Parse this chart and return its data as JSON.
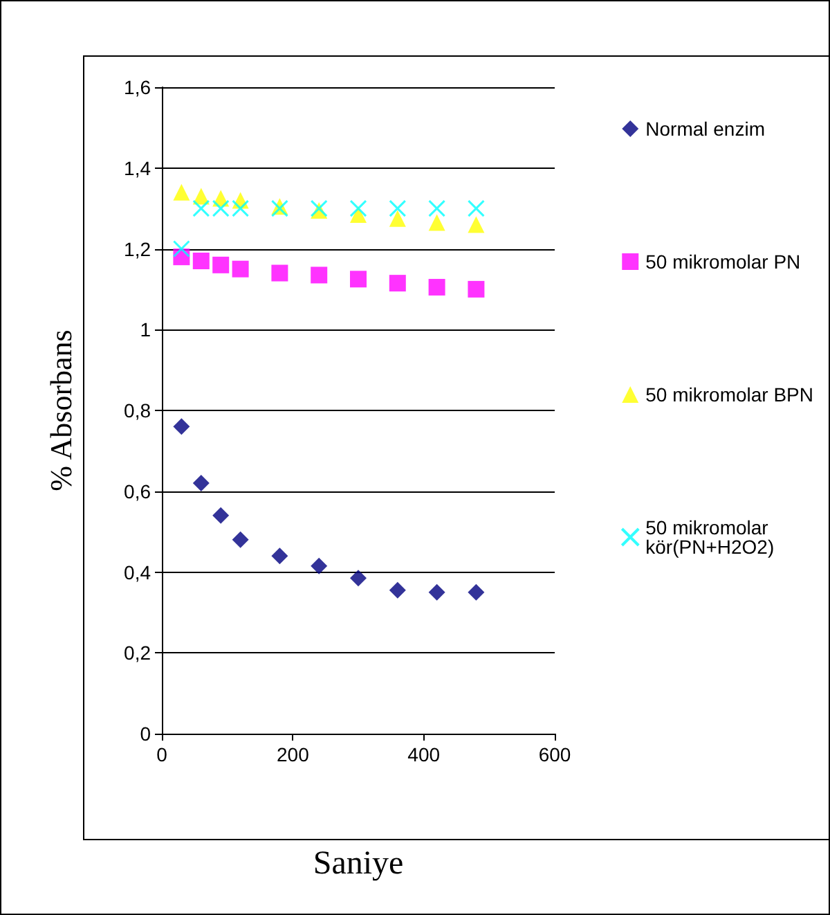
{
  "chart_data": {
    "type": "scatter",
    "xlabel": "Saniye",
    "ylabel": "% Absorbans",
    "xlim": [
      0,
      600
    ],
    "xticks": [
      0,
      200,
      400,
      600
    ],
    "ylim": [
      0,
      1.6
    ],
    "yticks": [
      0,
      {
        "value": 0.2,
        "label": "0,2"
      },
      {
        "value": 0.4,
        "label": "0,4"
      },
      {
        "value": 0.6,
        "label": "0,6"
      },
      {
        "value": 0.8,
        "label": "0,8"
      },
      1,
      {
        "value": 1.2,
        "label": "1,2"
      },
      {
        "value": 1.4,
        "label": "1,4"
      },
      {
        "value": 1.6,
        "label": "1,6"
      }
    ],
    "grid": "y",
    "legend": "right",
    "x": [
      30,
      60,
      90,
      120,
      180,
      240,
      300,
      360,
      420,
      480
    ],
    "series": [
      {
        "name": "Normal enzim",
        "color": "#000080",
        "marker": "diamond",
        "values": [
          0.76,
          0.62,
          0.54,
          0.48,
          0.44,
          0.415,
          0.385,
          0.355,
          0.35,
          0.35
        ]
      },
      {
        "name": "50 mikromolar PN",
        "color": "#ff00ff",
        "marker": "square",
        "values": [
          1.18,
          1.17,
          1.16,
          1.15,
          1.14,
          1.135,
          1.125,
          1.115,
          1.105,
          1.1
        ]
      },
      {
        "name": "50 mikromolar BPN",
        "color": "#ffff00",
        "marker": "triangle",
        "values": [
          1.34,
          1.33,
          1.325,
          1.32,
          1.305,
          1.295,
          1.285,
          1.275,
          1.265,
          1.26
        ]
      },
      {
        "name": "50 mikromolar kör(PN+H2O2)",
        "color": "#00ffff",
        "marker": "cross",
        "values": [
          1.2,
          1.3,
          1.3,
          1.3,
          1.3,
          1.3,
          1.3,
          1.3,
          1.3,
          1.3
        ]
      }
    ]
  }
}
